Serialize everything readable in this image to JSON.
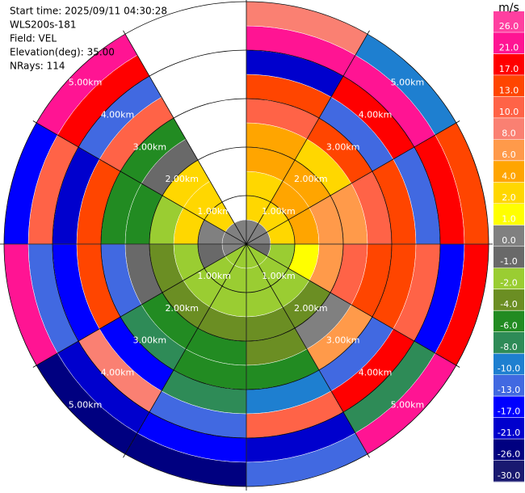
{
  "chart_data": {
    "type": "ppi",
    "header": [
      "Start time: 2025/09/11 04:30:28",
      "WLS200s-181",
      "Field: VEL",
      "Elevation(deg): 35.00",
      "NRays: 114"
    ],
    "rlim": [
      0,
      5
    ],
    "rings": [
      {
        "value": 1,
        "label": "1.00km"
      },
      {
        "value": 2,
        "label": "2.00km"
      },
      {
        "value": 3,
        "label": "3.00km"
      },
      {
        "value": 4,
        "label": "4.00km"
      },
      {
        "value": 5,
        "label": "5.00km"
      }
    ],
    "azimuths": [
      0,
      30,
      60,
      90,
      120,
      150,
      180,
      210,
      240,
      270,
      300,
      330,
      360
    ],
    "ranges": [
      0,
      0.5,
      1,
      1.5,
      2,
      2.5,
      3,
      3.5,
      4,
      4.5,
      5
    ],
    "values": [
      [
        0,
        2,
        3,
        5,
        4,
        12,
        15,
        -20,
        22,
        8
      ],
      [
        0,
        3,
        5,
        4,
        3,
        13,
        -13,
        18,
        24,
        -9
      ],
      [
        0,
        2,
        5,
        6,
        7,
        11,
        14,
        -11,
        20,
        16
      ],
      [
        -1,
        -1.5,
        1,
        6,
        10,
        14,
        15,
        12,
        -15,
        18
      ],
      [
        -1.5,
        -1.5,
        -1.5,
        -3,
        0.5,
        7,
        -12,
        20,
        -7,
        23
      ],
      [
        -1.5,
        -1.5,
        -1.5,
        -3,
        -3,
        -5,
        -9,
        11,
        -19,
        -11
      ],
      [
        -1.5,
        -1.5,
        -1.5,
        -3,
        -5,
        -5,
        -7,
        -12,
        -15,
        -23
      ],
      [
        -1.5,
        -1.5,
        -1.5,
        -3,
        -5,
        -7,
        -14,
        9,
        -18,
        -22
      ],
      [
        0.5,
        -0.5,
        -1.5,
        -3,
        -0.5,
        -11,
        16,
        -14,
        -12,
        22
      ],
      [
        0.5,
        0.5,
        3,
        -1.5,
        -5,
        -5,
        14,
        -19,
        10,
        -15
      ],
      [
        0.5,
        3,
        3,
        3,
        -0.5,
        -5,
        12,
        -11,
        19,
        23
      ],
      [
        0.5,
        null,
        null,
        null,
        null,
        null,
        null,
        null,
        null,
        null
      ]
    ],
    "colorbar": {
      "label": "m/s",
      "ticks": [
        {
          "value": -30,
          "label": "-30.0"
        },
        {
          "value": -26,
          "label": "-26.0"
        },
        {
          "value": -21,
          "label": "-21.0"
        },
        {
          "value": -17,
          "label": "-17.0"
        },
        {
          "value": -13,
          "label": "-13.0"
        },
        {
          "value": -10,
          "label": "-10.0"
        },
        {
          "value": -8,
          "label": "-8.0"
        },
        {
          "value": -6,
          "label": "-6.0"
        },
        {
          "value": -4,
          "label": "-4.0"
        },
        {
          "value": -2,
          "label": "-2.0"
        },
        {
          "value": -1,
          "label": "-1.0"
        },
        {
          "value": 0,
          "label": "0.0"
        },
        {
          "value": 1,
          "label": "1.0"
        },
        {
          "value": 2,
          "label": "2.0"
        },
        {
          "value": 4,
          "label": "4.0"
        },
        {
          "value": 6,
          "label": "6.0"
        },
        {
          "value": 8,
          "label": "8.0"
        },
        {
          "value": 10,
          "label": "10.0"
        },
        {
          "value": 13,
          "label": "13.0"
        },
        {
          "value": 17,
          "label": "17.0"
        },
        {
          "value": 21,
          "label": "21.0"
        },
        {
          "value": 26,
          "label": "26.0"
        }
      ],
      "colors": [
        "#191970",
        "#000080",
        "#0000cd",
        "#0000ff",
        "#4169e1",
        "#1e7fd0",
        "#2e8b57",
        "#228b22",
        "#6b8e23",
        "#9acd32",
        "#696969",
        "#808080",
        "#ffff00",
        "#ffd700",
        "#ffa500",
        "#ff9a4a",
        "#fa8072",
        "#ff6347",
        "#ff4500",
        "#ff0000",
        "#ff1493",
        "#ff3fa0"
      ]
    }
  }
}
